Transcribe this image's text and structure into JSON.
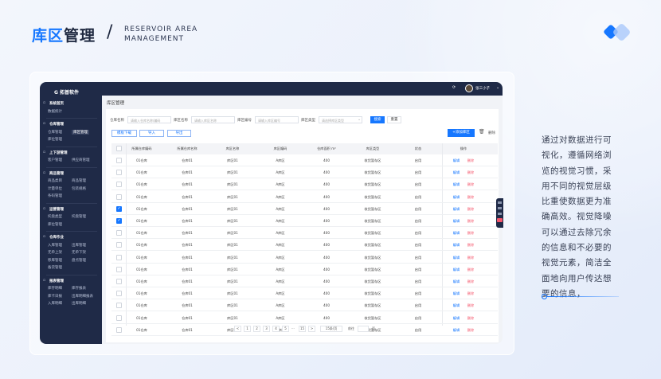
{
  "slide": {
    "title_hl": "库区",
    "title_rest": "管理",
    "slash": "/",
    "subtitle_1": "RESERVOIR AREA",
    "subtitle_2": "MANAGEMENT",
    "description": "通过对数据进行可视化，遵循网络浏览的视觉习惯，采用不同的视觉层级比重使数据更为准确高效。视觉降噪可以通过去除冗余的信息和不必要的视觉元素，简洁全面地向用户传达想要的信息，"
  },
  "app": {
    "brand": "拓普软件",
    "user": "张三小子",
    "page_title": "库区管理",
    "sidebar": [
      {
        "header": "系统首页",
        "items": [
          "数据统计"
        ]
      },
      {
        "header": "仓库管理",
        "items": [
          "仓库管理",
          "库区管理",
          "库位管理"
        ],
        "active": "库区管理"
      },
      {
        "header": "上下游管理",
        "items": [
          "客户管理",
          "供应商管理"
        ]
      },
      {
        "header": "商品管理",
        "items": [
          "商品类目",
          "商品管理",
          "计量单位",
          "包装规格",
          "条码管理"
        ]
      },
      {
        "header": "运营管理",
        "items": [
          "托盘类型",
          "托盘管理",
          "库位管理"
        ]
      },
      {
        "header": "仓库作业",
        "items": [
          "入库管理",
          "出库管理",
          "无单上架",
          "无单下架",
          "移库管理",
          "盘点管理",
          "备货管理"
        ]
      },
      {
        "header": "报表管理",
        "items": [
          "库存明细",
          "库存报表",
          "库卡日报",
          "出库明细报表",
          "入库明细",
          "出库明细"
        ]
      }
    ],
    "filters": [
      {
        "label": "仓库名称",
        "placeholder": "请输入仓库名称/编码"
      },
      {
        "label": "库区名称",
        "placeholder": "请输入库区名称"
      },
      {
        "label": "库区编号",
        "placeholder": "请输入库区编号"
      },
      {
        "label": "库区类型",
        "placeholder": "请选择库区类型"
      }
    ],
    "search_label": "搜索",
    "reset_label": "重置",
    "template_label": "模板下载",
    "import_label": "导入",
    "export_label": "导出",
    "add_label": "+添加库区",
    "delete_label": "删除",
    "columns": [
      "所属仓库编码",
      "所属仓库名称",
      "库区名称",
      "库区编码",
      "仓库面积 m²",
      "库区类型",
      "状态",
      "操作"
    ],
    "rows": [
      {
        "code": "01仓库",
        "name": "仓库01",
        "area_name": "库区01",
        "area_code": "A库区",
        "size": "400",
        "type": "收货暂存区",
        "status": "启用",
        "checked": false
      },
      {
        "code": "01仓库",
        "name": "仓库01",
        "area_name": "库区01",
        "area_code": "A库区",
        "size": "400",
        "type": "收货暂存区",
        "status": "启用",
        "checked": false
      },
      {
        "code": "01仓库",
        "name": "仓库01",
        "area_name": "库区01",
        "area_code": "A库区",
        "size": "400",
        "type": "收货暂存区",
        "status": "启用",
        "checked": false
      },
      {
        "code": "01仓库",
        "name": "仓库01",
        "area_name": "库区01",
        "area_code": "A库区",
        "size": "400",
        "type": "收货暂存区",
        "status": "启用",
        "checked": false
      },
      {
        "code": "01仓库",
        "name": "仓库01",
        "area_name": "库区01",
        "area_code": "A库区",
        "size": "400",
        "type": "收货暂存区",
        "status": "启用",
        "checked": true
      },
      {
        "code": "01仓库",
        "name": "仓库01",
        "area_name": "库区01",
        "area_code": "A库区",
        "size": "400",
        "type": "收货暂存区",
        "status": "启用",
        "checked": true
      },
      {
        "code": "01仓库",
        "name": "仓库01",
        "area_name": "库区01",
        "area_code": "A库区",
        "size": "400",
        "type": "收货暂存区",
        "status": "启用",
        "checked": false
      },
      {
        "code": "01仓库",
        "name": "仓库01",
        "area_name": "库区01",
        "area_code": "A库区",
        "size": "400",
        "type": "收货暂存区",
        "status": "启用",
        "checked": false
      },
      {
        "code": "01仓库",
        "name": "仓库01",
        "area_name": "库区01",
        "area_code": "A库区",
        "size": "400",
        "type": "收货暂存区",
        "status": "启用",
        "checked": false
      },
      {
        "code": "01仓库",
        "name": "仓库01",
        "area_name": "库区01",
        "area_code": "A库区",
        "size": "400",
        "type": "收货暂存区",
        "status": "启用",
        "checked": false
      },
      {
        "code": "01仓库",
        "name": "仓库01",
        "area_name": "库区01",
        "area_code": "A库区",
        "size": "400",
        "type": "收货暂存区",
        "status": "启用",
        "checked": false
      },
      {
        "code": "01仓库",
        "name": "仓库01",
        "area_name": "库区01",
        "area_code": "A库区",
        "size": "400",
        "type": "收货暂存区",
        "status": "启用",
        "checked": false
      },
      {
        "code": "01仓库",
        "name": "仓库01",
        "area_name": "库区01",
        "area_code": "A库区",
        "size": "400",
        "type": "收货暂存区",
        "status": "启用",
        "checked": false
      },
      {
        "code": "01仓库",
        "name": "仓库01",
        "area_name": "库区01",
        "area_code": "A库区",
        "size": "400",
        "type": "收货暂存区",
        "status": "启用",
        "checked": false
      },
      {
        "code": "01仓库",
        "name": "仓库01",
        "area_name": "库区01",
        "area_code": "A库区",
        "size": "400",
        "type": "收货暂存区",
        "status": "启用",
        "checked": false
      }
    ],
    "edit_label": "编辑",
    "del_label": "删除",
    "pagination": {
      "pages": [
        "<",
        "1",
        "2",
        "3",
        "4",
        "5",
        "...",
        "15",
        ">"
      ],
      "page_size": "15条/页",
      "goto": "前往",
      "page_unit": "页"
    }
  },
  "colors": {
    "accent": "#1677ff",
    "sidebar": "#1f2a47",
    "danger": "#f5566c"
  }
}
